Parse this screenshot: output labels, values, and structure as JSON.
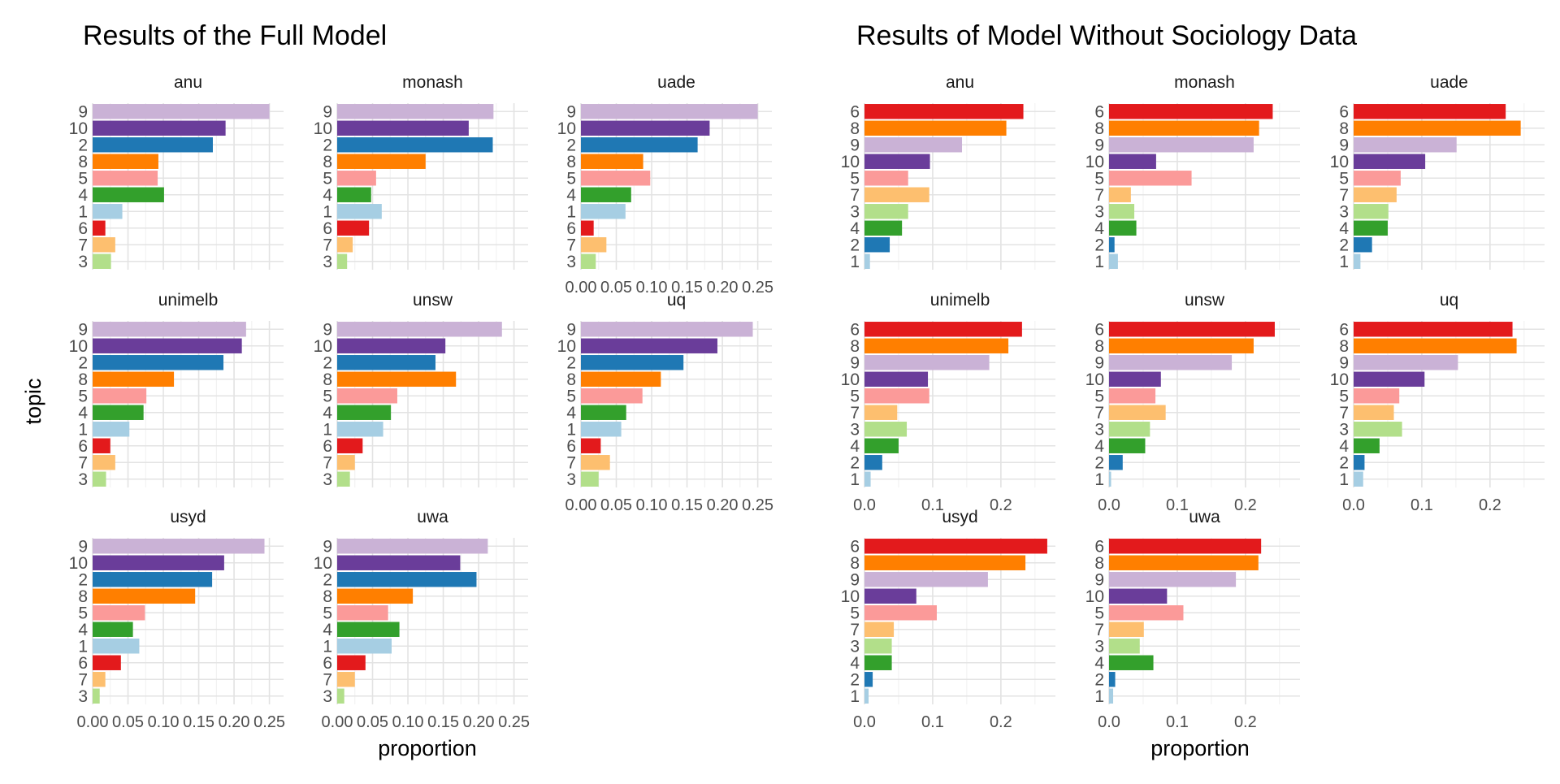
{
  "colors": {
    "1": "#a6cee3",
    "2": "#1f78b4",
    "3": "#b2df8a",
    "4": "#33a02c",
    "5": "#fb9a99",
    "6": "#e31a1c",
    "7": "#fdbf6f",
    "8": "#ff7f00",
    "9": "#cab2d6",
    "10": "#6a3d9a"
  },
  "chart_data": [
    {
      "type": "bar",
      "orientation": "horizontal",
      "title": "Results of the Full Model",
      "xlabel": "proportion",
      "ylabel": "topic",
      "xlim": [
        0,
        0.27
      ],
      "xticks": [
        "0.00",
        "0.05",
        "0.10",
        "0.15",
        "0.20",
        "0.25"
      ],
      "xtick_values": [
        0,
        0.05,
        0.1,
        0.15,
        0.2,
        0.25
      ],
      "categories": [
        "9",
        "10",
        "2",
        "8",
        "5",
        "4",
        "1",
        "6",
        "7",
        "3"
      ],
      "facets": [
        {
          "name": "anu",
          "values": [
            0.25,
            0.188,
            0.17,
            0.093,
            0.092,
            0.101,
            0.042,
            0.018,
            0.032,
            0.026
          ]
        },
        {
          "name": "monash",
          "values": [
            0.221,
            0.186,
            0.22,
            0.125,
            0.055,
            0.048,
            0.063,
            0.045,
            0.022,
            0.014
          ]
        },
        {
          "name": "uade",
          "values": [
            0.25,
            0.182,
            0.165,
            0.088,
            0.098,
            0.071,
            0.063,
            0.018,
            0.036,
            0.021
          ]
        },
        {
          "name": "unimelb",
          "values": [
            0.217,
            0.211,
            0.185,
            0.115,
            0.076,
            0.072,
            0.052,
            0.025,
            0.032,
            0.019
          ]
        },
        {
          "name": "unsw",
          "values": [
            0.233,
            0.153,
            0.139,
            0.168,
            0.085,
            0.076,
            0.065,
            0.036,
            0.025,
            0.018
          ]
        },
        {
          "name": "uq",
          "values": [
            0.243,
            0.193,
            0.145,
            0.113,
            0.087,
            0.064,
            0.057,
            0.028,
            0.041,
            0.025
          ]
        },
        {
          "name": "usyd",
          "values": [
            0.243,
            0.186,
            0.169,
            0.145,
            0.074,
            0.057,
            0.066,
            0.04,
            0.018,
            0.01
          ]
        },
        {
          "name": "uwa",
          "values": [
            0.213,
            0.174,
            0.197,
            0.107,
            0.072,
            0.088,
            0.077,
            0.04,
            0.025,
            0.01
          ]
        }
      ]
    },
    {
      "type": "bar",
      "orientation": "horizontal",
      "title": "Results of Model Without Sociology Data",
      "xlabel": "proportion",
      "ylabel": "",
      "xlim": [
        0,
        0.28
      ],
      "xticks": [
        "0.0",
        "0.1",
        "0.2"
      ],
      "xtick_values": [
        0,
        0.1,
        0.2
      ],
      "categories": [
        "6",
        "8",
        "9",
        "10",
        "5",
        "7",
        "3",
        "4",
        "2",
        "1"
      ],
      "facets": [
        {
          "name": "anu",
          "values": [
            0.233,
            0.208,
            0.143,
            0.096,
            0.064,
            0.095,
            0.064,
            0.055,
            0.037,
            0.008
          ]
        },
        {
          "name": "monash",
          "values": [
            0.24,
            0.22,
            0.212,
            0.069,
            0.121,
            0.032,
            0.037,
            0.04,
            0.008,
            0.013
          ]
        },
        {
          "name": "uade",
          "values": [
            0.223,
            0.245,
            0.151,
            0.105,
            0.069,
            0.063,
            0.051,
            0.05,
            0.027,
            0.01
          ]
        },
        {
          "name": "unimelb",
          "values": [
            0.231,
            0.211,
            0.183,
            0.093,
            0.095,
            0.048,
            0.062,
            0.05,
            0.026,
            0.009
          ]
        },
        {
          "name": "unsw",
          "values": [
            0.243,
            0.212,
            0.18,
            0.076,
            0.068,
            0.083,
            0.06,
            0.053,
            0.02,
            0.003
          ]
        },
        {
          "name": "uq",
          "values": [
            0.233,
            0.239,
            0.153,
            0.104,
            0.067,
            0.059,
            0.071,
            0.038,
            0.016,
            0.014
          ]
        },
        {
          "name": "usyd",
          "values": [
            0.268,
            0.236,
            0.181,
            0.076,
            0.106,
            0.043,
            0.04,
            0.04,
            0.012,
            0.006
          ]
        },
        {
          "name": "uwa",
          "values": [
            0.223,
            0.219,
            0.186,
            0.085,
            0.109,
            0.051,
            0.045,
            0.065,
            0.009,
            0.006
          ]
        }
      ]
    }
  ]
}
